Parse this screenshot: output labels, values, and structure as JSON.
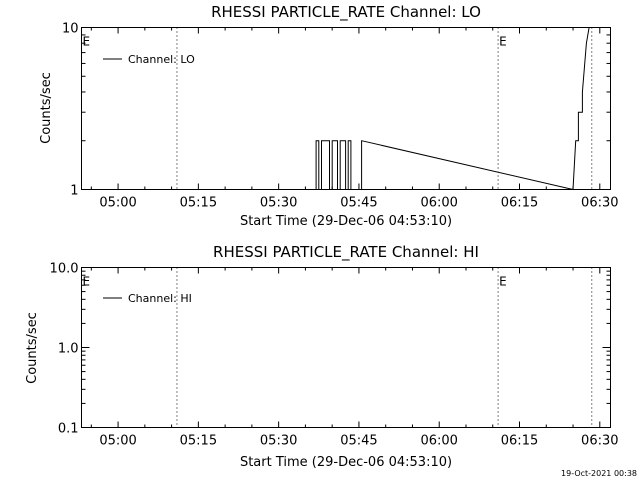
{
  "chart_data": [
    {
      "type": "line",
      "title": "RHESSI PARTICLE_RATE Channel: LO",
      "xlabel": "Start Time (29-Dec-06 04:53:10)",
      "ylabel": "Counts/sec",
      "yscale": "log",
      "ylim": [
        1,
        10
      ],
      "y_ticks": [
        "1",
        "10"
      ],
      "xlim": [
        "04:53:10",
        "06:32:00"
      ],
      "x_ticks": [
        "05:00",
        "05:15",
        "05:30",
        "05:45",
        "06:00",
        "06:15",
        "06:30"
      ],
      "grid": false,
      "legend_position": "top-left",
      "legend": [
        "Channel: LO"
      ],
      "markers": [
        {
          "label": "E",
          "time": "04:53:10",
          "dotted": false
        },
        {
          "label": "",
          "time": "05:11:00",
          "dotted": true
        },
        {
          "label": "E",
          "time": "06:11:00",
          "dotted": true
        },
        {
          "label": "",
          "time": "06:28:30",
          "dotted": true
        }
      ],
      "series": [
        {
          "x": [
            "05:37:00",
            "05:37:00",
            "05:37:30",
            "05:37:30",
            "05:38:00",
            "05:38:00",
            "05:39:30",
            "05:39:30",
            "05:40:00",
            "05:40:00",
            "05:41:00",
            "05:41:00",
            "05:41:30",
            "05:41:30",
            "05:42:30",
            "05:42:30",
            "05:43:00",
            "05:43:00",
            "05:43:30",
            "05:43:30",
            "05:45:30",
            "05:45:30",
            "06:25:00",
            "06:25:30",
            "06:26:00",
            "06:26:00",
            "06:26:45",
            "06:26:45",
            "06:27:30",
            "06:28:00"
          ],
          "values": [
            1,
            2,
            2,
            1,
            1,
            2,
            2,
            1,
            1,
            2,
            2,
            1,
            1,
            2,
            2,
            1,
            1,
            2,
            2,
            1,
            1,
            2,
            1,
            2,
            2,
            3,
            3,
            4,
            8,
            10
          ]
        }
      ]
    },
    {
      "type": "line",
      "title": "RHESSI PARTICLE_RATE Channel: HI",
      "xlabel": "Start Time (29-Dec-06 04:53:10)",
      "ylabel": "Counts/sec",
      "yscale": "log",
      "ylim": [
        0.1,
        10
      ],
      "y_ticks": [
        "0.1",
        "1.0",
        "10.0"
      ],
      "xlim": [
        "04:53:10",
        "06:32:00"
      ],
      "x_ticks": [
        "05:00",
        "05:15",
        "05:30",
        "05:45",
        "06:00",
        "06:15",
        "06:30"
      ],
      "grid": false,
      "legend_position": "top-left",
      "legend": [
        "Channel: HI"
      ],
      "markers": [
        {
          "label": "E",
          "time": "04:53:10",
          "dotted": false
        },
        {
          "label": "",
          "time": "05:11:00",
          "dotted": true
        },
        {
          "label": "E",
          "time": "06:11:00",
          "dotted": true
        },
        {
          "label": "",
          "time": "06:28:30",
          "dotted": true
        }
      ],
      "series": [
        {
          "x": [],
          "values": []
        }
      ]
    }
  ],
  "footer": {
    "timestamp": "19-Oct-2021 00:38"
  }
}
